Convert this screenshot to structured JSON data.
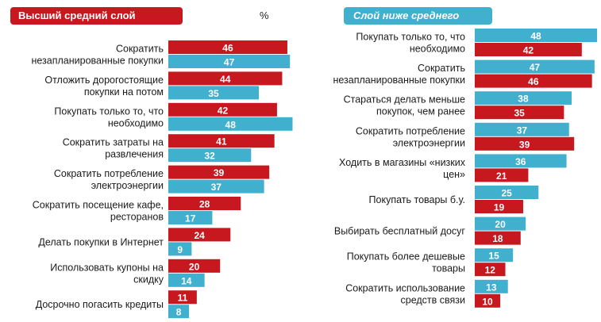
{
  "chart_data": [
    {
      "type": "bar",
      "title": "Высший средний слой",
      "unit_label": "%",
      "categories": [
        [
          "Сократить",
          "незапланированные покупки"
        ],
        [
          "Отложить дорогостоящие",
          "покупки на потом"
        ],
        [
          "Покупать только то, что",
          "необходимо"
        ],
        [
          "Сократить затраты на",
          "развлечения"
        ],
        [
          "Сократить потребление",
          "электроэнергии"
        ],
        [
          "Сократить посещение кафе,",
          "ресторанов"
        ],
        [
          "Делать покупки в Интернет"
        ],
        [
          "Использовать купоны на",
          "скидку"
        ],
        [
          "Досрочно погасить кредиты"
        ]
      ],
      "series": [
        {
          "name": "Высший средний слой",
          "color": "#c8181f",
          "values": [
            46,
            44,
            42,
            41,
            39,
            28,
            24,
            20,
            11
          ]
        },
        {
          "name": "Слой ниже среднего",
          "color": "#41afce",
          "values": [
            47,
            35,
            48,
            32,
            37,
            17,
            9,
            14,
            8
          ]
        }
      ],
      "xlim": [
        0,
        48
      ]
    },
    {
      "type": "bar",
      "title": "Слой ниже среднего",
      "categories": [
        [
          "Покупать только то, что",
          "необходимо"
        ],
        [
          "Сократить",
          "незапланированные покупки"
        ],
        [
          "Стараться делать меньше",
          "покупок, чем ранее"
        ],
        [
          "Сократить потребление",
          "электроэнергии"
        ],
        [
          "Ходить в магазины «низких",
          "цен»"
        ],
        [
          "Покупать товары б.у."
        ],
        [
          "Выбирать бесплатный досуг"
        ],
        [
          "Покупать более дешевые",
          "товары"
        ],
        [
          "Сократить использование",
          "средств связи"
        ]
      ],
      "series": [
        {
          "name": "Слой ниже среднего",
          "color": "#41afce",
          "values": [
            48,
            47,
            38,
            37,
            36,
            25,
            20,
            15,
            13
          ]
        },
        {
          "name": "Высший средний слой",
          "color": "#c8181f",
          "values": [
            42,
            46,
            35,
            39,
            21,
            19,
            18,
            12,
            10
          ]
        }
      ],
      "xlim": [
        0,
        48
      ]
    }
  ]
}
